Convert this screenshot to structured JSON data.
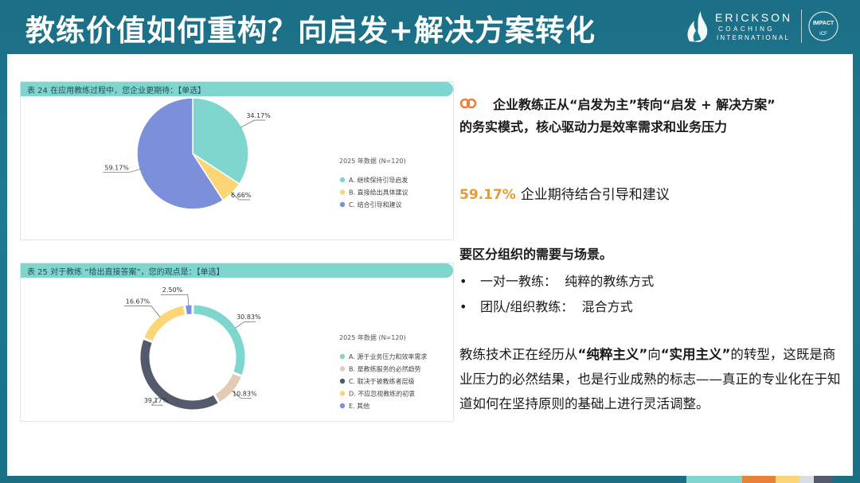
{
  "header": {
    "title": "教练价值如何重构？向启发+解决方案转化",
    "logo_brand": "ERICKSON",
    "logo_sub1": "COACHING",
    "logo_sub2": "INTERNATIONAL",
    "badge_text": "IMPACT",
    "badge_org": "ICF"
  },
  "colors": {
    "teal": "#7fd6cf",
    "yellow": "#fcd676",
    "blue": "#7b8fda",
    "beige": "#e4cbb5",
    "slate": "#535a6b",
    "accent": "#e59a3a"
  },
  "chart_data": [
    {
      "type": "pie",
      "title": "表 24  在应用教练过程中，您企业更期待：【单选】",
      "legend_title": "2025 年数据 (N=120)",
      "categories": [
        "A. 继续保持引导启发",
        "B. 直接给出具体建议",
        "C. 结合引导和建议"
      ],
      "values": [
        34.17,
        6.66,
        59.17
      ],
      "labels": [
        "34.17%",
        "6.66%",
        "59.17%"
      ],
      "colors": [
        "#7fd6cf",
        "#fcd676",
        "#7b8fda"
      ],
      "legend_position": "right"
    },
    {
      "type": "pie",
      "subtype": "donut",
      "title": "表 25  对于教练 “给出直接答案”，您的观点是：【单选】",
      "legend_title": "2025 年数据 (N=120)",
      "categories": [
        "A. 源于业务压力和效率需求",
        "B. 是教练服务的必然趋势",
        "C. 取决于被教练者层级",
        "D. 不应忽视教练的初衷",
        "E. 其他"
      ],
      "values": [
        30.83,
        10.83,
        39.17,
        16.67,
        2.5
      ],
      "labels": [
        "30.83%",
        "10.83%",
        "39.17%",
        "16.67%",
        "2.50%"
      ],
      "colors": [
        "#7fd6cf",
        "#e4cbb5",
        "#535a6b",
        "#fcd676",
        "#7b8fda"
      ],
      "legend_position": "right"
    }
  ],
  "right": {
    "intro_line1": "企业教练正从“启发为主”转向“启发 + 解决方案”",
    "intro_line2": "的务实模式，核心驱动力是效率需求和业务压力",
    "stat_value": "59.17%",
    "stat_text": "企业期待结合引导和建议",
    "heading": "要区分组织的需要与场景。",
    "bullets": [
      {
        "dot": "•",
        "label": "一对一教练：",
        "value": "纯粹的教练方式"
      },
      {
        "dot": "•",
        "label": "团队/组织教练：",
        "value": "混合方式"
      }
    ],
    "para_pre": "教练技术正在经历从",
    "para_b1": "“纯粹主义”",
    "para_mid": "向",
    "para_b2": "“实用主义”",
    "para_post": "的转型，这既是商业压力的必然结果，也是行业成熟的标志——真正的专业化在于知道如何在坚持原则的基础上进行灵活调整。"
  }
}
